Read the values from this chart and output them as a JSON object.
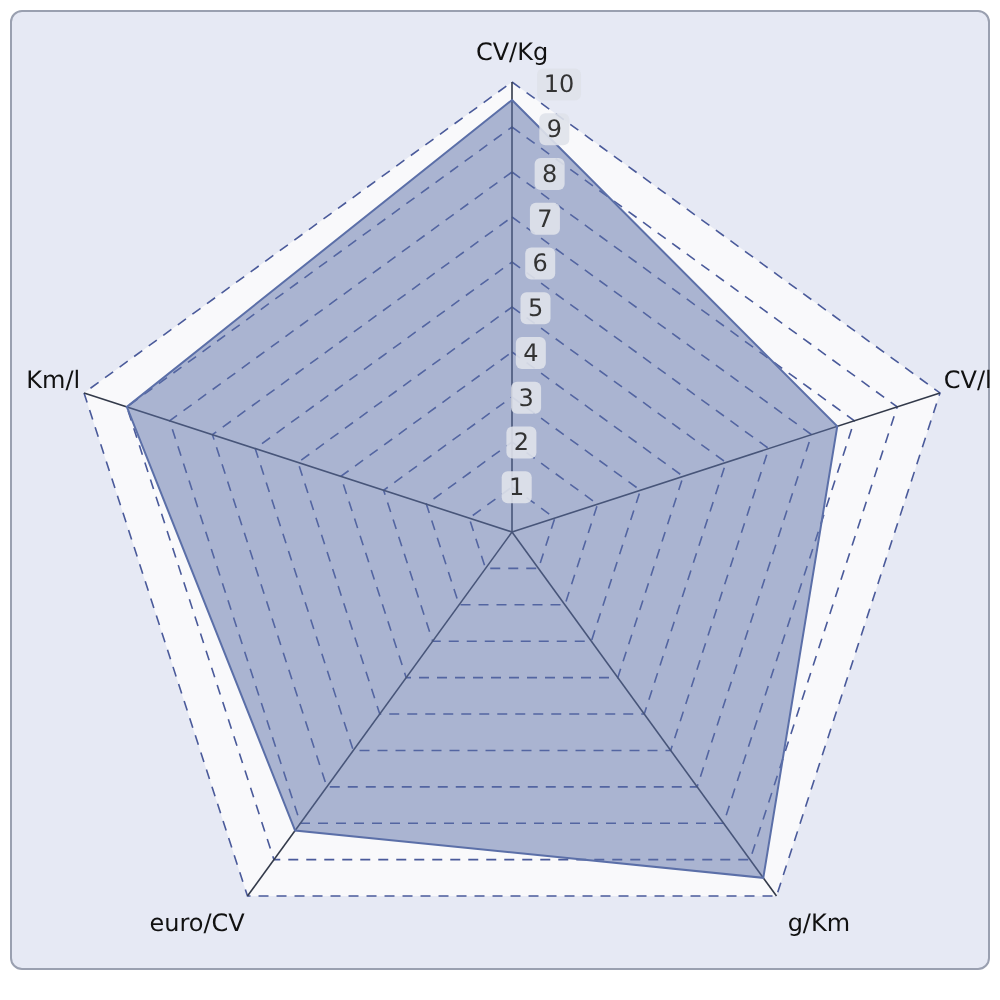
{
  "chart_data": {
    "type": "radar",
    "categories": [
      "CV/Kg",
      "CV/l",
      "g/Km",
      "euro/CV",
      "Km/l"
    ],
    "series": [
      {
        "color": "#5b6fa8",
        "values": [
          9.6,
          7.6,
          9.5,
          8.2,
          9.0
        ]
      }
    ],
    "ylim": [
      0,
      10
    ],
    "yticks": [
      1,
      2,
      3,
      4,
      5,
      6,
      7,
      8,
      9,
      10
    ],
    "grid": true
  }
}
